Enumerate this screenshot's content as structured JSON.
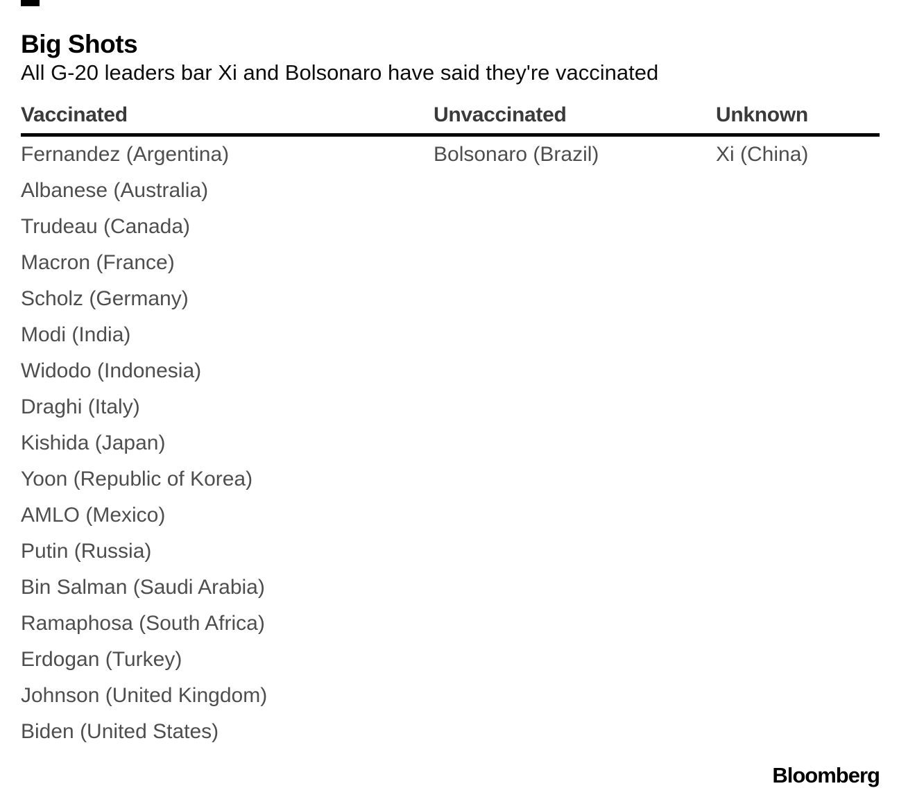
{
  "header": {
    "title": "Big Shots",
    "subtitle": "All G-20 leaders bar Xi and Bolsonaro have said they're vaccinated"
  },
  "table": {
    "columns": [
      {
        "label": "Vaccinated",
        "entries": [
          "Fernandez (Argentina)",
          "Albanese (Australia)",
          "Trudeau (Canada)",
          "Macron (France)",
          "Scholz (Germany)",
          "Modi (India)",
          "Widodo (Indonesia)",
          "Draghi (Italy)",
          "Kishida (Japan)",
          "Yoon (Republic of Korea)",
          "AMLO (Mexico)",
          "Putin (Russia)",
          "Bin Salman (Saudi Arabia)",
          "Ramaphosa (South Africa)",
          "Erdogan (Turkey)",
          "Johnson (United Kingdom)",
          "Biden (United States)"
        ]
      },
      {
        "label": "Unvaccinated",
        "entries": [
          "Bolsonaro (Brazil)"
        ]
      },
      {
        "label": "Unknown",
        "entries": [
          "Xi (China)"
        ]
      }
    ]
  },
  "footer": {
    "brand": "Bloomberg"
  },
  "colors": {
    "background": "#ffffff",
    "title": "#000000",
    "subtitle": "#0d0d0d",
    "column_header": "#3a3a3a",
    "entry_text": "#4e4e4e",
    "rule": "#000000",
    "brand": "#000000",
    "brand_tick": "#000000"
  },
  "chart_data": {
    "type": "table",
    "title": "Big Shots",
    "subtitle": "All G-20 leaders bar Xi and Bolsonaro have said they're vaccinated",
    "columns": [
      "Vaccinated",
      "Unvaccinated",
      "Unknown"
    ],
    "column_values": {
      "Vaccinated": [
        "Fernandez (Argentina)",
        "Albanese (Australia)",
        "Trudeau (Canada)",
        "Macron (France)",
        "Scholz (Germany)",
        "Modi (India)",
        "Widodo (Indonesia)",
        "Draghi (Italy)",
        "Kishida (Japan)",
        "Yoon (Republic of Korea)",
        "AMLO (Mexico)",
        "Putin (Russia)",
        "Bin Salman (Saudi Arabia)",
        "Ramaphosa (South Africa)",
        "Erdogan (Turkey)",
        "Johnson (United Kingdom)",
        "Biden (United States)"
      ],
      "Unvaccinated": [
        "Bolsonaro (Brazil)"
      ],
      "Unknown": [
        "Xi (China)"
      ]
    },
    "counts": {
      "Vaccinated": 17,
      "Unvaccinated": 1,
      "Unknown": 1
    },
    "layout_hints": {
      "header_rule": "thick black horizontal line under column headers",
      "brand_position": "bottom-right"
    },
    "brand": "Bloomberg"
  }
}
